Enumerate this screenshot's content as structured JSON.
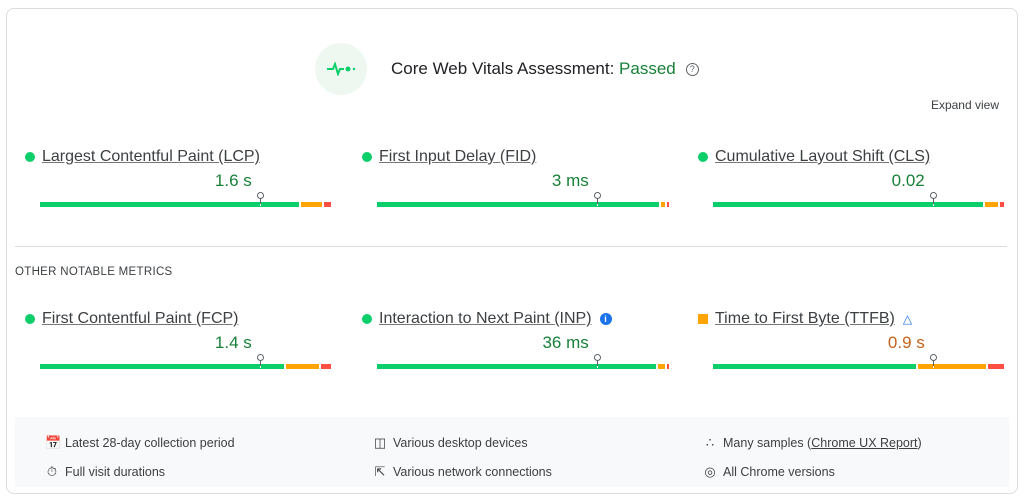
{
  "header": {
    "title": "Core Web Vitals Assessment: ",
    "status": "Passed",
    "status_color": "#188038",
    "help_icon": "question-circle-icon",
    "logo_icon": "pulse-icon"
  },
  "expand_label": "Expand view",
  "section_label": "OTHER NOTABLE METRICS",
  "colors": {
    "good": "#0cce6b",
    "needs_improvement": "#ffa400",
    "poor": "#ff4e42"
  },
  "core_metrics": [
    {
      "name": "Largest Contentful Paint (LCP)",
      "value": "1.6 s",
      "rating": "good",
      "distribution": [
        89,
        8,
        3
      ],
      "p75_percentile": 75
    },
    {
      "name": "First Input Delay (FID)",
      "value": "3 ms",
      "rating": "good",
      "distribution": [
        97,
        2,
        1
      ],
      "p75_percentile": 75
    },
    {
      "name": "Cumulative Layout Shift (CLS)",
      "value": "0.02",
      "rating": "good",
      "distribution": [
        93,
        5,
        2
      ],
      "p75_percentile": 75
    }
  ],
  "other_metrics": [
    {
      "name": "First Contentful Paint (FCP)",
      "value": "1.4 s",
      "rating": "good",
      "distribution": [
        84,
        12,
        4
      ],
      "p75_percentile": 75
    },
    {
      "name": "Interaction to Next Paint (INP)",
      "value": "36 ms",
      "rating": "good",
      "distribution": [
        96,
        3,
        1
      ],
      "p75_percentile": 75,
      "badge_icon": "info-icon"
    },
    {
      "name": "Time to First Byte (TTFB)",
      "value": "0.9 s",
      "rating": "needs_improvement",
      "distribution": [
        70,
        24,
        6
      ],
      "p75_percentile": 75,
      "badge_icon": "flask-icon"
    }
  ],
  "footer": [
    {
      "icon": "calendar-icon",
      "text": "Latest 28-day collection period"
    },
    {
      "icon": "devices-icon",
      "text": "Various desktop devices"
    },
    {
      "icon": "samples-icon",
      "text": "Many samples (",
      "link": "Chrome UX Report",
      "after": ")"
    },
    {
      "icon": "timer-icon",
      "text": "Full visit durations"
    },
    {
      "icon": "network-icon",
      "text": "Various network connections"
    },
    {
      "icon": "chrome-icon",
      "text": "All Chrome versions"
    }
  ]
}
